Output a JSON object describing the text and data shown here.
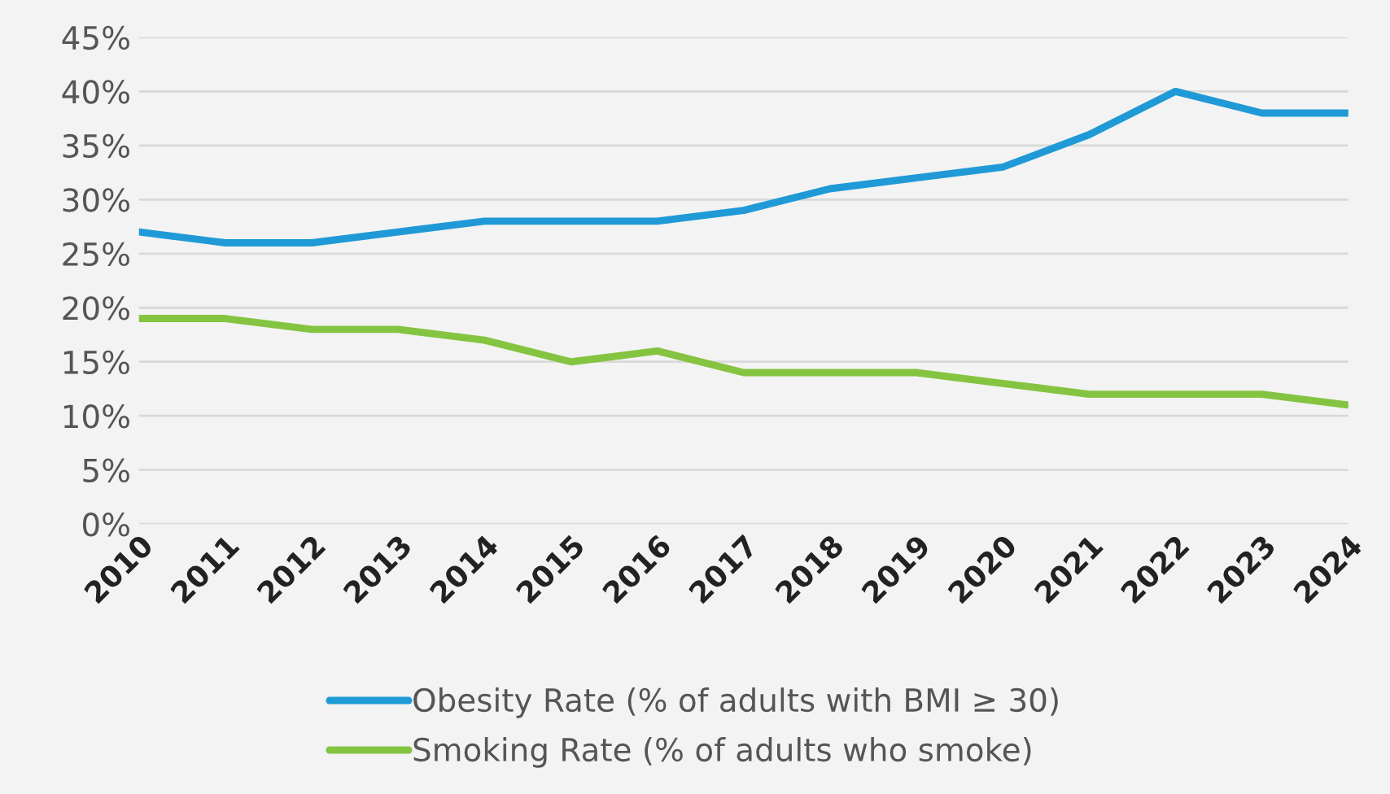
{
  "chart_data": {
    "type": "line",
    "categories": [
      "2010",
      "2011",
      "2012",
      "2013",
      "2014",
      "2015",
      "2016",
      "2017",
      "2018",
      "2019",
      "2020",
      "2021",
      "2022",
      "2023",
      "2024"
    ],
    "series": [
      {
        "name": "Obesity Rate (% of adults with BMI ≥ 30)",
        "color": "#1f9ad6",
        "values": [
          27,
          26,
          26,
          27,
          28,
          28,
          28,
          29,
          31,
          32,
          33,
          36,
          40,
          38,
          38
        ]
      },
      {
        "name": "Smoking Rate (% of adults who smoke)",
        "color": "#84c441",
        "values": [
          19,
          19,
          18,
          18,
          17,
          15,
          16,
          14,
          14,
          14,
          13,
          12,
          12,
          12,
          11
        ]
      }
    ],
    "ylim": [
      0,
      45
    ],
    "yticks": [
      {
        "value": 0,
        "label": "0%"
      },
      {
        "value": 5,
        "label": "5%"
      },
      {
        "value": 10,
        "label": "10%"
      },
      {
        "value": 15,
        "label": "15%"
      },
      {
        "value": 20,
        "label": "20%"
      },
      {
        "value": 25,
        "label": "25%"
      },
      {
        "value": 30,
        "label": "30%"
      },
      {
        "value": 35,
        "label": "35%"
      },
      {
        "value": 40,
        "label": "40%"
      },
      {
        "value": 45,
        "label": "45%"
      }
    ],
    "grid": "y",
    "legend": "bottom",
    "marker": "none",
    "line_style": "solid"
  }
}
